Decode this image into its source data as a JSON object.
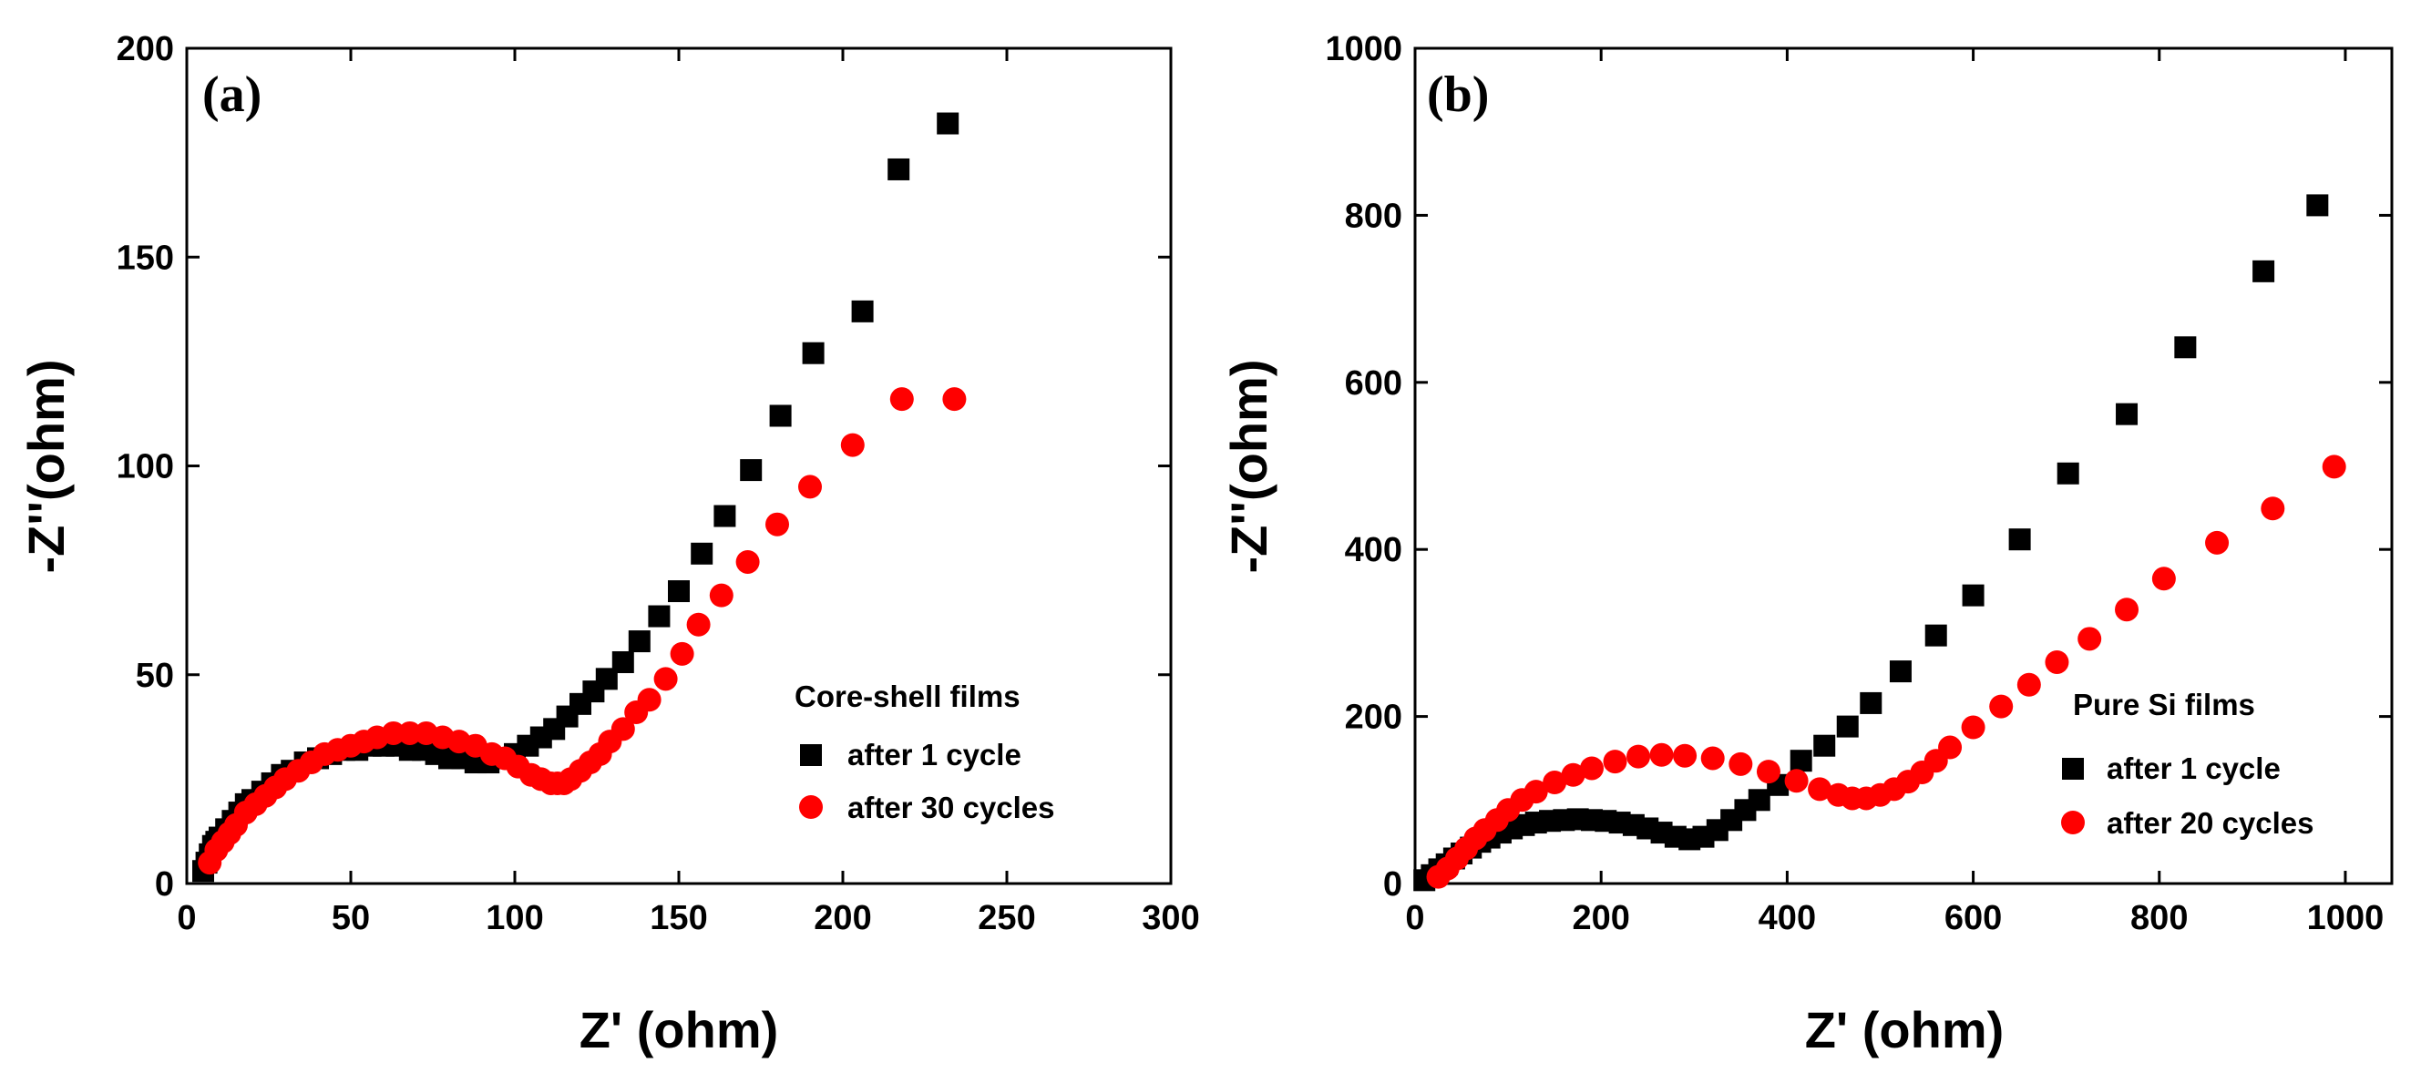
{
  "chart_data": [
    {
      "type": "scatter",
      "panel_label": "(a)",
      "xlabel": "Z' (ohm)",
      "ylabel": "-Z''(ohm)",
      "xlim": [
        0,
        300
      ],
      "ylim": [
        0,
        200
      ],
      "xticks": [
        "0",
        "50",
        "100",
        "150",
        "200",
        "250",
        "300"
      ],
      "yticks": [
        "0",
        "50",
        "100",
        "150",
        "200"
      ],
      "legend_title": "Core-shell films",
      "legend_position": "lower-right",
      "series": [
        {
          "name": "after 1 cycle",
          "marker": "square",
          "color": "#000000",
          "x": [
            5,
            6,
            7,
            8,
            9,
            10,
            12,
            14,
            16,
            18,
            20,
            23,
            26,
            29,
            32,
            36,
            40,
            44,
            48,
            52,
            56,
            60,
            64,
            68,
            72,
            76,
            80,
            84,
            88,
            92,
            96,
            100,
            104,
            108,
            112,
            116,
            120,
            124,
            128,
            133,
            138,
            144,
            150,
            157,
            164,
            172,
            181,
            191,
            206,
            217,
            232
          ],
          "y": [
            3,
            5,
            7,
            9,
            10,
            11,
            13,
            15,
            17,
            19,
            20,
            22,
            24,
            26,
            27,
            29,
            30,
            31,
            32,
            32,
            33,
            33,
            33,
            32,
            32,
            31,
            30,
            30,
            29,
            29,
            30,
            31,
            33,
            35,
            37,
            40,
            43,
            46,
            49,
            53,
            58,
            64,
            70,
            79,
            88,
            99,
            112,
            127,
            137,
            171,
            182
          ]
        },
        {
          "name": "after 30 cycles",
          "marker": "circle",
          "color": "#ff0000",
          "x": [
            7,
            9,
            11,
            13,
            15,
            18,
            21,
            24,
            27,
            30,
            34,
            38,
            42,
            46,
            50,
            54,
            58,
            63,
            68,
            73,
            78,
            83,
            88,
            93,
            97,
            101,
            105,
            108,
            111,
            113,
            115,
            117,
            120,
            123,
            126,
            129,
            133,
            137,
            141,
            146,
            151,
            156,
            163,
            171,
            180,
            190,
            203,
            218,
            234
          ],
          "y": [
            5,
            8,
            10,
            12,
            14,
            17,
            19,
            21,
            23,
            25,
            27,
            29,
            31,
            32,
            33,
            34,
            35,
            36,
            36,
            36,
            35,
            34,
            33,
            31,
            30,
            28,
            26,
            25,
            24,
            24,
            24,
            25,
            27,
            29,
            31,
            34,
            37,
            41,
            44,
            49,
            55,
            62,
            69,
            77,
            86,
            95,
            105,
            116,
            116
          ]
        }
      ]
    },
    {
      "type": "scatter",
      "panel_label": "(b)",
      "xlabel": "Z' (ohm)",
      "ylabel": "-Z''(ohm)",
      "xlim": [
        0,
        1050
      ],
      "ylim": [
        0,
        1000
      ],
      "xticks": [
        "0",
        "200",
        "400",
        "600",
        "800",
        "1000"
      ],
      "yticks": [
        "0",
        "200",
        "400",
        "600",
        "800",
        "1000"
      ],
      "legend_title": "Pure Si films",
      "legend_position": "lower-right",
      "series": [
        {
          "name": "after 1 cycle",
          "marker": "square",
          "color": "#000000",
          "x": [
            10,
            18,
            26,
            34,
            42,
            50,
            60,
            70,
            80,
            92,
            104,
            117,
            130,
            145,
            160,
            175,
            190,
            205,
            220,
            235,
            250,
            265,
            280,
            295,
            310,
            325,
            340,
            355,
            370,
            390,
            415,
            440,
            465,
            490,
            522,
            560,
            600,
            650,
            702,
            765,
            828,
            912,
            970
          ],
          "y": [
            4,
            10,
            17,
            23,
            30,
            36,
            43,
            50,
            55,
            61,
            66,
            70,
            73,
            75,
            76,
            77,
            76,
            75,
            73,
            70,
            66,
            61,
            56,
            53,
            56,
            64,
            76,
            88,
            100,
            118,
            147,
            165,
            188,
            216,
            254,
            297,
            345,
            412,
            491,
            562,
            642,
            733,
            812
          ]
        },
        {
          "name": "after 20 cycles",
          "marker": "circle",
          "color": "#ff0000",
          "x": [
            25,
            35,
            45,
            55,
            65,
            75,
            88,
            100,
            115,
            130,
            150,
            170,
            190,
            215,
            240,
            265,
            290,
            320,
            350,
            380,
            410,
            435,
            455,
            470,
            485,
            500,
            515,
            530,
            545,
            560,
            575,
            600,
            630,
            660,
            690,
            725,
            765,
            805,
            862,
            922,
            988
          ],
          "y": [
            8,
            18,
            30,
            42,
            54,
            64,
            76,
            88,
            100,
            110,
            121,
            130,
            138,
            146,
            152,
            154,
            153,
            150,
            143,
            134,
            123,
            113,
            106,
            102,
            102,
            106,
            113,
            122,
            133,
            147,
            163,
            187,
            212,
            238,
            265,
            293,
            328,
            365,
            408,
            449,
            499
          ]
        }
      ]
    }
  ]
}
